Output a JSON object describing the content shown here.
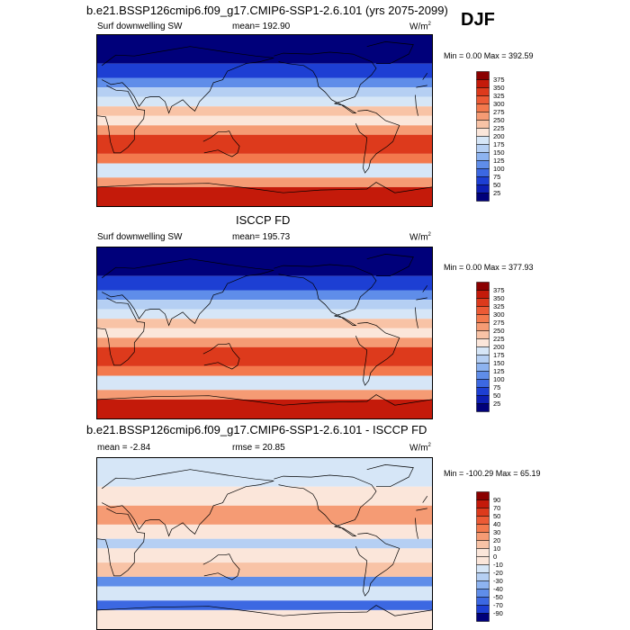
{
  "header": {
    "title": "b.e21.BSSP126cmip6.f09_g17.CMIP6-SSP1-2.6.101 (yrs 2075-2099)",
    "season": "DJF"
  },
  "panels": [
    {
      "title": "",
      "variable": "Surf downwelling SW",
      "stat_label": "mean= 192.90",
      "units": "W/m",
      "units_exp": "2",
      "minmax": "Min =   0.00 Max = 392.59"
    },
    {
      "title": "ISCCP FD",
      "variable": "Surf downwelling SW",
      "stat_label": "mean= 195.73",
      "units": "W/m",
      "units_exp": "2",
      "minmax": "Min =   0.00 Max = 377.93"
    },
    {
      "title": "b.e21.BSSP126cmip6.f09_g17.CMIP6-SSP1-2.6.101 - ISCCP FD",
      "variable": "mean =  -2.84",
      "stat_label": "rmse =  20.85",
      "units": "W/m",
      "units_exp": "2",
      "minmax": "Min = -100.29 Max =  65.19"
    }
  ],
  "chart_data": [
    {
      "type": "heatmap",
      "title": "",
      "variable": "Surf downwelling SW",
      "units": "W/m2",
      "mean": 192.9,
      "min": 0.0,
      "max": 392.59,
      "colorbar_levels": [
        "375",
        "350",
        "325",
        "300",
        "275",
        "250",
        "225",
        "200",
        "175",
        "150",
        "125",
        "100",
        "75",
        "50",
        "25"
      ],
      "colorbar_colors": [
        "#8b0000",
        "#c41a0a",
        "#dd3a1c",
        "#ec5a35",
        "#f3794d",
        "#f59b74",
        "#f8c3a6",
        "#fbe6da",
        "#d6e6f7",
        "#b5cff3",
        "#8db3f0",
        "#5f8de9",
        "#3c68e2",
        "#1d3fd3",
        "#0d1fb4",
        "#00007a"
      ]
    },
    {
      "type": "heatmap",
      "title": "ISCCP FD",
      "variable": "Surf downwelling SW",
      "units": "W/m2",
      "mean": 195.73,
      "min": 0.0,
      "max": 377.93,
      "colorbar_levels": [
        "375",
        "350",
        "325",
        "300",
        "275",
        "250",
        "225",
        "200",
        "175",
        "150",
        "125",
        "100",
        "75",
        "50",
        "25"
      ],
      "colorbar_colors": [
        "#8b0000",
        "#c41a0a",
        "#dd3a1c",
        "#ec5a35",
        "#f3794d",
        "#f59b74",
        "#f8c3a6",
        "#fbe6da",
        "#d6e6f7",
        "#b5cff3",
        "#8db3f0",
        "#5f8de9",
        "#3c68e2",
        "#1d3fd3",
        "#0d1fb4",
        "#00007a"
      ]
    },
    {
      "type": "heatmap",
      "title": "b.e21.BSSP126cmip6.f09_g17.CMIP6-SSP1-2.6.101 - ISCCP FD",
      "units": "W/m2",
      "mean": -2.84,
      "rmse": 20.85,
      "min": -100.29,
      "max": 65.19,
      "colorbar_levels": [
        "90",
        "70",
        "50",
        "40",
        "30",
        "20",
        "10",
        "0",
        "-10",
        "-20",
        "-30",
        "-40",
        "-50",
        "-70",
        "-90"
      ],
      "colorbar_colors": [
        "#8b0000",
        "#c41a0a",
        "#dd3a1c",
        "#ec5a35",
        "#f3794d",
        "#f59b74",
        "#f8c3a6",
        "#fbe6da",
        "#fbe6da",
        "#d6e6f7",
        "#b5cff3",
        "#8db3f0",
        "#5f8de9",
        "#3c68e2",
        "#1d3fd3",
        "#00007a"
      ]
    }
  ]
}
